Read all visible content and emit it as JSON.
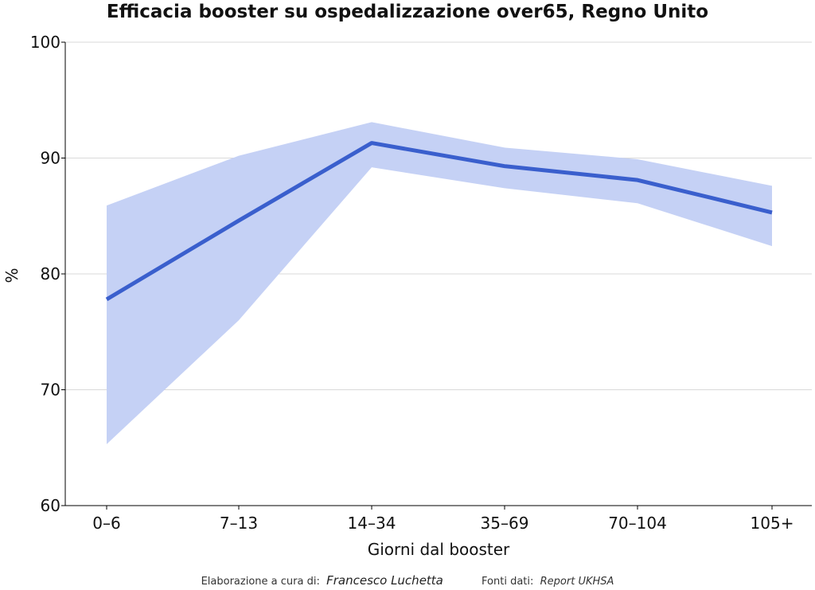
{
  "chart_data": {
    "type": "line",
    "title": "Efficacia booster su ospedalizzazione over65, Regno Unito",
    "xlabel": "Giorni dal booster",
    "ylabel": "%",
    "categories": [
      "0–6",
      "7–13",
      "14–34",
      "35–69",
      "70–104",
      "105+"
    ],
    "series": [
      {
        "values": [
          77.8,
          84.6,
          91.3,
          89.3,
          88.1,
          85.3
        ],
        "lower": [
          65.3,
          76.0,
          89.2,
          87.4,
          86.1,
          82.4
        ],
        "upper": [
          85.9,
          90.2,
          93.1,
          90.9,
          89.9,
          87.6
        ]
      }
    ],
    "ylim": [
      60,
      100
    ],
    "yticks": [
      60,
      70,
      80,
      90,
      100
    ],
    "grid": true,
    "colors": {
      "line": "#3a5fcd",
      "band": "#c5d1f5",
      "grid": "#d9d9d9",
      "axis": "#000000"
    }
  },
  "footer": {
    "credit_label": "Elaborazione a cura di:",
    "credit_name": "Francesco Luchetta",
    "source_label": "Fonti dati:",
    "source_name": "Report UKHSA"
  }
}
